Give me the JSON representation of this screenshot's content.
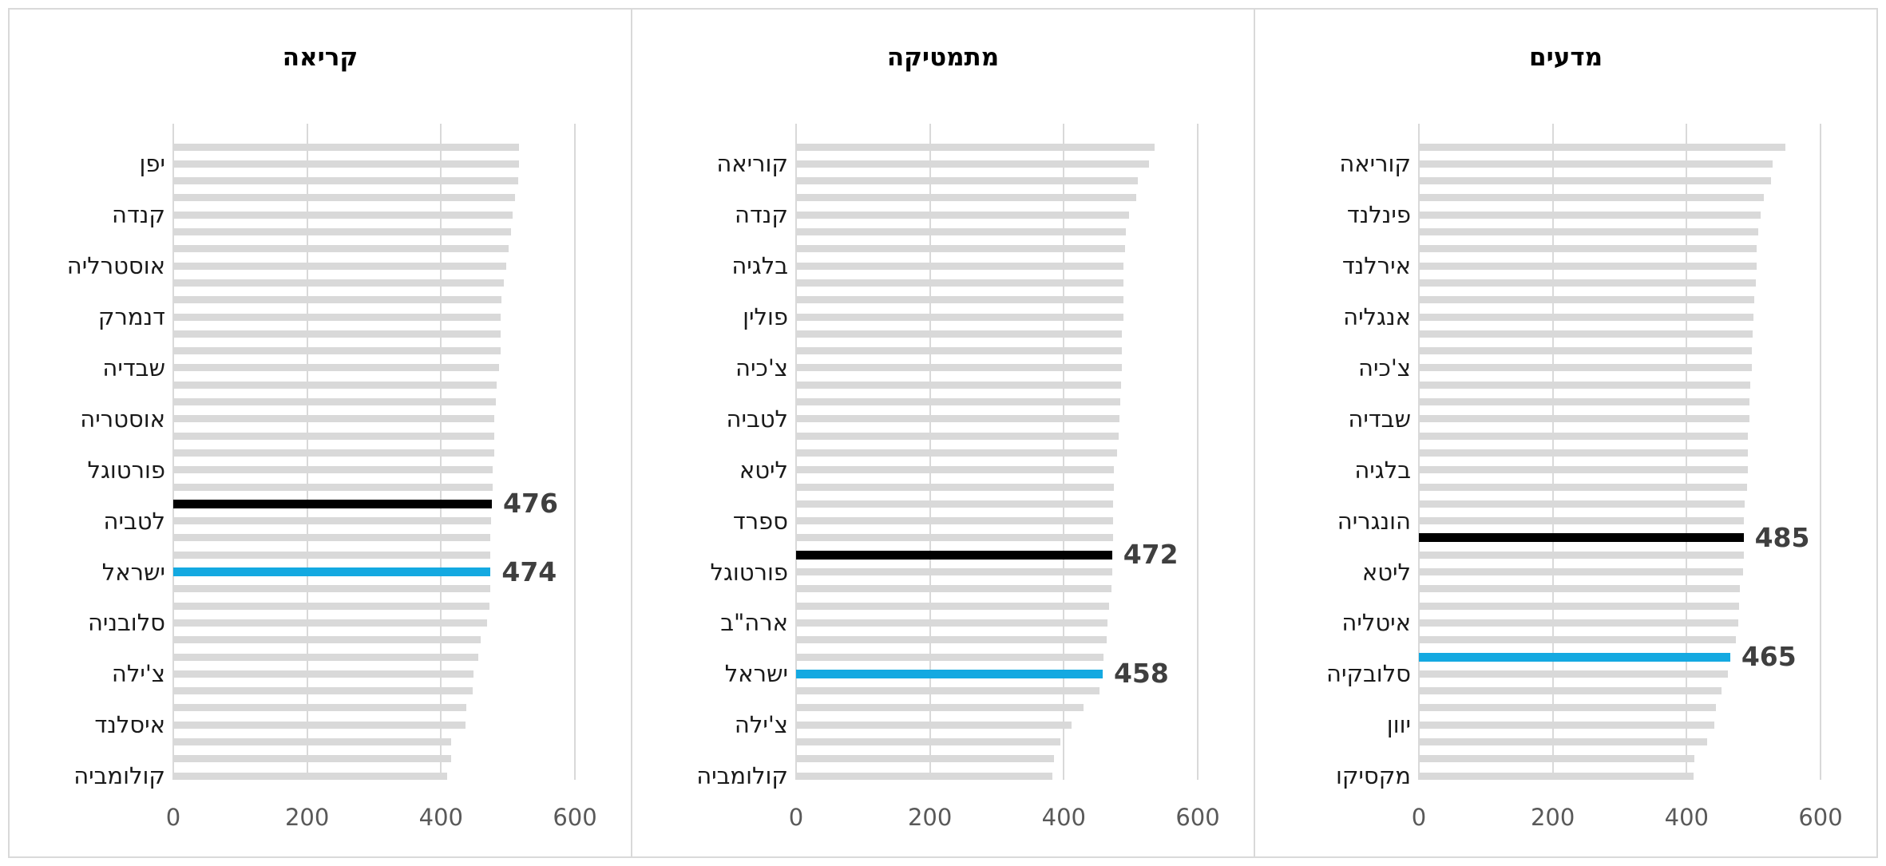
{
  "page": {
    "background": "#ffffff",
    "panel_border": "#d9d9d9"
  },
  "colors": {
    "bar_gray": "#d9d9d9",
    "bar_black": "#000000",
    "bar_blue": "#14a9e1",
    "gridline": "#d9d9d9",
    "callout_text": "#3f3f3f",
    "tick_text": "#595959",
    "label_text": "#1a1a1a"
  },
  "chart_data": [
    {
      "type": "bar",
      "orientation": "horizontal",
      "title": "קריאה",
      "x_ticks": [
        "0",
        "200",
        "400",
        "600"
      ],
      "x_max": 600,
      "grid": true,
      "bars": [
        {
          "v": 516
        },
        {
          "v": 516,
          "label": "יפן"
        },
        {
          "v": 515
        },
        {
          "v": 511
        },
        {
          "v": 507,
          "label": "קנדה"
        },
        {
          "v": 504
        },
        {
          "v": 501
        },
        {
          "v": 498,
          "label": "אוסטרליה"
        },
        {
          "v": 494
        },
        {
          "v": 490
        },
        {
          "v": 489,
          "label": "דנמרק"
        },
        {
          "v": 489
        },
        {
          "v": 489
        },
        {
          "v": 487,
          "label": "שבדיה"
        },
        {
          "v": 483
        },
        {
          "v": 482
        },
        {
          "v": 480,
          "label": "אוסטריה"
        },
        {
          "v": 480
        },
        {
          "v": 479
        },
        {
          "v": 477,
          "label": "פורטוגל"
        },
        {
          "v": 477
        },
        {
          "v": 476,
          "color": "black",
          "callout": "476"
        },
        {
          "v": 475,
          "label": "לטביה"
        },
        {
          "v": 474
        },
        {
          "v": 474
        },
        {
          "v": 474,
          "color": "blue",
          "callout": "474",
          "label": "ישראל"
        },
        {
          "v": 473
        },
        {
          "v": 472
        },
        {
          "v": 469,
          "label": "סלובניה"
        },
        {
          "v": 459
        },
        {
          "v": 456
        },
        {
          "v": 448,
          "label": "צ'ילה"
        },
        {
          "v": 447
        },
        {
          "v": 438
        },
        {
          "v": 436,
          "label": "איסלנד"
        },
        {
          "v": 415
        },
        {
          "v": 415
        },
        {
          "v": 409,
          "label": "קולומביה"
        }
      ]
    },
    {
      "type": "bar",
      "orientation": "horizontal",
      "title": "מתמטיקה",
      "x_ticks": [
        "0",
        "200",
        "400",
        "600"
      ],
      "x_max": 600,
      "grid": true,
      "bars": [
        {
          "v": 536
        },
        {
          "v": 527,
          "label": "קוריאה"
        },
        {
          "v": 510
        },
        {
          "v": 508
        },
        {
          "v": 497,
          "label": "קנדה"
        },
        {
          "v": 493
        },
        {
          "v": 492
        },
        {
          "v": 489,
          "label": "בלגיה"
        },
        {
          "v": 489
        },
        {
          "v": 489
        },
        {
          "v": 489,
          "label": "פולין"
        },
        {
          "v": 487
        },
        {
          "v": 487
        },
        {
          "v": 487,
          "label": "צ'כיה"
        },
        {
          "v": 485
        },
        {
          "v": 484
        },
        {
          "v": 483,
          "label": "לטביה"
        },
        {
          "v": 482
        },
        {
          "v": 479
        },
        {
          "v": 475,
          "label": "ליטא"
        },
        {
          "v": 475
        },
        {
          "v": 474
        },
        {
          "v": 473,
          "label": "ספרד"
        },
        {
          "v": 473
        },
        {
          "v": 472,
          "color": "black",
          "callout": "472"
        },
        {
          "v": 472,
          "label": "פורטוגל"
        },
        {
          "v": 471
        },
        {
          "v": 468
        },
        {
          "v": 465,
          "label": "ארה\"ב"
        },
        {
          "v": 464
        },
        {
          "v": 459
        },
        {
          "v": 458,
          "color": "blue",
          "callout": "458",
          "label": "ישראל"
        },
        {
          "v": 453
        },
        {
          "v": 430
        },
        {
          "v": 412,
          "label": "צ'ילה"
        },
        {
          "v": 395
        },
        {
          "v": 385
        },
        {
          "v": 383,
          "label": "קולומביה"
        }
      ]
    },
    {
      "type": "bar",
      "orientation": "horizontal",
      "title": "מדעים",
      "x_ticks": [
        "0",
        "200",
        "400",
        "600"
      ],
      "x_max": 600,
      "grid": true,
      "bars": [
        {
          "v": 547
        },
        {
          "v": 528,
          "label": "קוריאה"
        },
        {
          "v": 526
        },
        {
          "v": 515
        },
        {
          "v": 511,
          "label": "פינלנד"
        },
        {
          "v": 507
        },
        {
          "v": 505
        },
        {
          "v": 504,
          "label": "אירלנד"
        },
        {
          "v": 503
        },
        {
          "v": 501
        },
        {
          "v": 500,
          "label": "אנגליה"
        },
        {
          "v": 499
        },
        {
          "v": 498
        },
        {
          "v": 497,
          "label": "צ'כיה"
        },
        {
          "v": 495
        },
        {
          "v": 494
        },
        {
          "v": 494,
          "label": "שבדיה"
        },
        {
          "v": 492
        },
        {
          "v": 491
        },
        {
          "v": 491,
          "label": "בלגיה"
        },
        {
          "v": 490
        },
        {
          "v": 487
        },
        {
          "v": 486,
          "label": "הונגריה"
        },
        {
          "v": 485,
          "color": "black",
          "callout": "485"
        },
        {
          "v": 485
        },
        {
          "v": 484,
          "label": "ליטא"
        },
        {
          "v": 480
        },
        {
          "v": 478
        },
        {
          "v": 477,
          "label": "איטליה"
        },
        {
          "v": 473
        },
        {
          "v": 465,
          "color": "blue",
          "callout": "465"
        },
        {
          "v": 462,
          "label": "סלובקיה"
        },
        {
          "v": 452
        },
        {
          "v": 444
        },
        {
          "v": 441,
          "label": "יוון"
        },
        {
          "v": 431
        },
        {
          "v": 411
        },
        {
          "v": 410,
          "label": "מקסיקו"
        }
      ]
    }
  ]
}
